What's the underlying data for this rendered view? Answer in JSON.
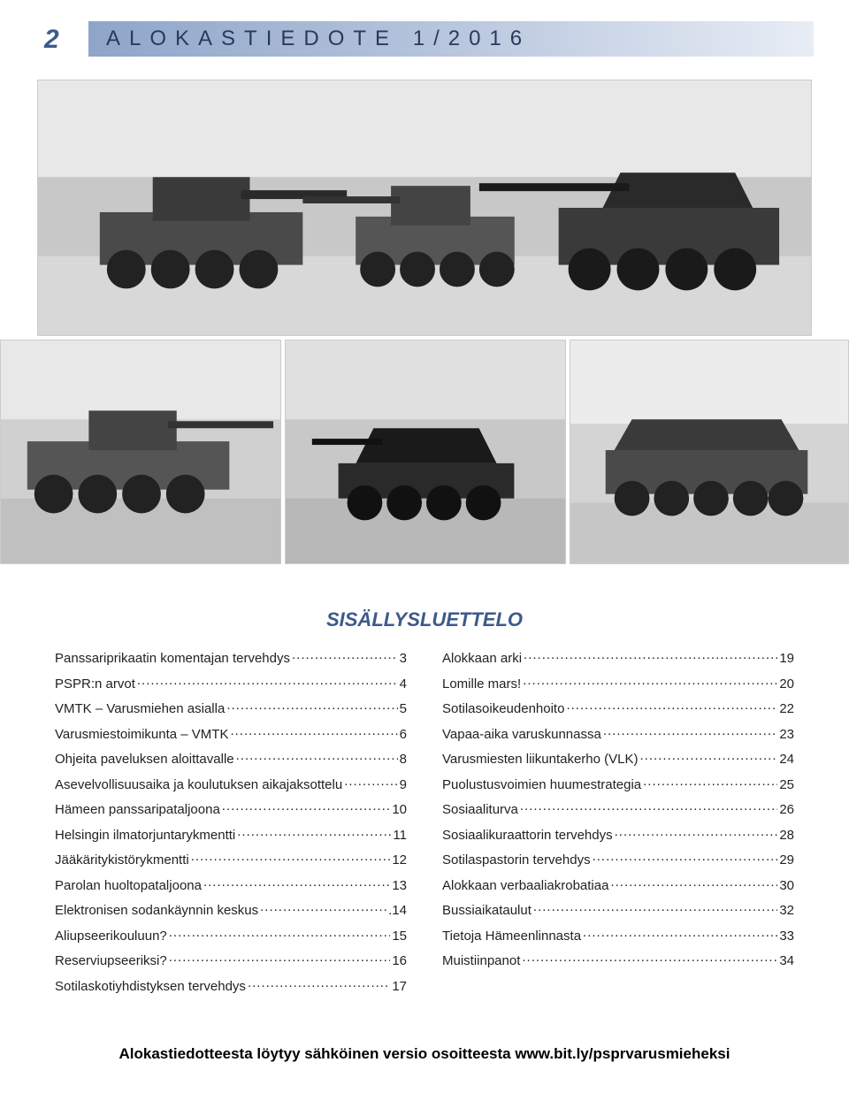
{
  "page_number": "2",
  "header": {
    "title": "ALOKASTIEDOTE 1/2016",
    "gradient_start": "#8ea5c9",
    "gradient_end": "#e8edf5",
    "text_color": "#2a3a5a"
  },
  "images": {
    "top": {
      "desc": "tanks-in-snow-wide"
    },
    "bottom_left": {
      "desc": "armored-vehicle-left"
    },
    "bottom_center": {
      "desc": "tank-center"
    },
    "bottom_right": {
      "desc": "apc-right"
    }
  },
  "toc": {
    "title": "SISÄLLYSLUETTELO",
    "title_color": "#3c5a8a",
    "text_color": "#222222",
    "fontsize": 15,
    "left": [
      {
        "label": "Panssariprikaatin komentajan tervehdys",
        "page": "3"
      },
      {
        "label": "PSPR:n arvot",
        "page": "4"
      },
      {
        "label": "VMTK – Varusmiehen asialla",
        "page": "5"
      },
      {
        "label": "Varusmiestoimikunta – VMTK",
        "page": "6"
      },
      {
        "label": "Ohjeita paveluksen aloittavalle",
        "page": "8"
      },
      {
        "label": "Asevelvollisuusaika ja koulutuksen aikajaksottelu",
        "page": "9"
      },
      {
        "label": "Hämeen panssaripataljoona",
        "page": "10"
      },
      {
        "label": "Helsingin ilmatorjuntarykmentti",
        "page": "11"
      },
      {
        "label": "Jääkäritykistörykmentti",
        "page": "12"
      },
      {
        "label": "Parolan huoltopataljoona",
        "page": "13"
      },
      {
        "label": "Elektronisen sodankäynnin keskus",
        "page": ".14"
      },
      {
        "label": "Aliupseerikouluun?",
        "page": "15"
      },
      {
        "label": "Reserviupseeriksi?",
        "page": "16"
      },
      {
        "label": "Sotilaskotiyhdistyksen tervehdys",
        "page": "17"
      }
    ],
    "right": [
      {
        "label": "Alokkaan arki",
        "page": "19"
      },
      {
        "label": "Lomille mars!",
        "page": "20"
      },
      {
        "label": "Sotilasoikeudenhoito",
        "page": "22"
      },
      {
        "label": "Vapaa-aika varuskunnassa",
        "page": "23"
      },
      {
        "label": "Varusmiesten liikuntakerho (VLK)",
        "page": "24"
      },
      {
        "label": "Puolustusvoimien huumestrategia",
        "page": "25"
      },
      {
        "label": "Sosiaaliturva",
        "page": "26"
      },
      {
        "label": "Sosiaalikuraattorin tervehdys",
        "page": "28"
      },
      {
        "label": "Sotilaspastorin tervehdys",
        "page": "29"
      },
      {
        "label": "Alokkaan verbaaliakrobatiaa",
        "page": "30"
      },
      {
        "label": "Bussiaikataulut",
        "page": "32"
      },
      {
        "label": "Tietoja Hämeenlinnasta",
        "page": "33"
      },
      {
        "label": "Muistiinpanot",
        "page": "34"
      }
    ]
  },
  "footer": {
    "text": "Alokastiedotteesta löytyy sähköinen versio osoitteesta www.bit.ly/psprvarusmieheksi",
    "color": "#000000",
    "fontsize": 17,
    "font_weight": 700
  }
}
